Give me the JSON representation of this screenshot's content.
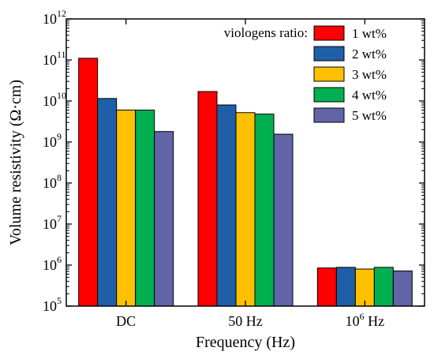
{
  "chart_data": {
    "type": "bar",
    "xlabel": "Frequency (Hz)",
    "ylabel": "Volume resistivity (Ω·cm)",
    "yscale": "log",
    "ylim": [
      100000,
      1000000000000
    ],
    "y_ticks": [
      {
        "base": "10",
        "exp": "5",
        "value": 100000
      },
      {
        "base": "10",
        "exp": "6",
        "value": 1000000
      },
      {
        "base": "10",
        "exp": "7",
        "value": 10000000
      },
      {
        "base": "10",
        "exp": "8",
        "value": 100000000
      },
      {
        "base": "10",
        "exp": "9",
        "value": 1000000000
      },
      {
        "base": "10",
        "exp": "10",
        "value": 10000000000
      },
      {
        "base": "10",
        "exp": "11",
        "value": 100000000000
      },
      {
        "base": "10",
        "exp": "12",
        "value": 1000000000000
      }
    ],
    "categories": [
      {
        "label": "DC",
        "sup": "",
        "suffix": ""
      },
      {
        "label": "50 Hz",
        "sup": "",
        "suffix": ""
      },
      {
        "label": "10",
        "sup": "6",
        "suffix": " Hz"
      }
    ],
    "legend": {
      "title": "viologens ratio:",
      "position": "top-right"
    },
    "series": [
      {
        "name": "1 wt%",
        "color": "#ff0000",
        "values": [
          110000000000,
          17000000000,
          850000
        ]
      },
      {
        "name": "2 wt%",
        "color": "#1f5fa8",
        "values": [
          11500000000,
          8000000000,
          880000
        ]
      },
      {
        "name": "3 wt%",
        "color": "#ffc000",
        "values": [
          6000000000,
          5200000000,
          800000
        ]
      },
      {
        "name": "4 wt%",
        "color": "#00b050",
        "values": [
          6000000000,
          4800000000,
          880000
        ]
      },
      {
        "name": "5 wt%",
        "color": "#6264a8",
        "values": [
          1800000000,
          1550000000,
          720000
        ]
      }
    ],
    "grid": false
  }
}
